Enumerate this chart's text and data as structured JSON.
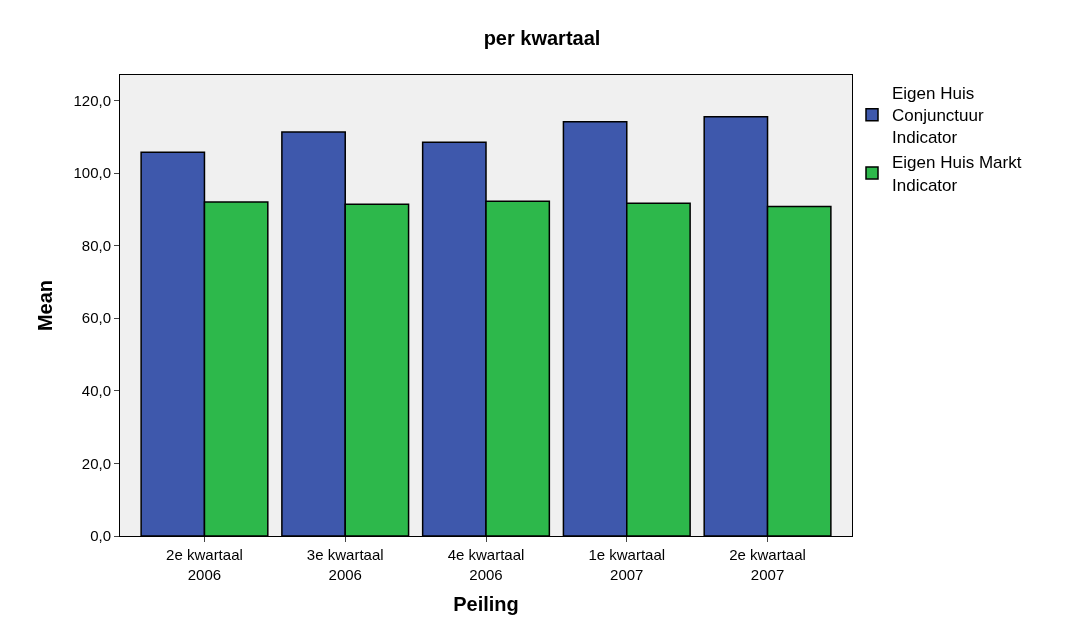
{
  "chart_data": {
    "type": "bar",
    "title": "per kwartaal",
    "xlabel": "Peiling",
    "ylabel": "Mean",
    "categories": [
      "2e kwartaal 2006",
      "3e kwartaal 2006",
      "4e kwartaal 2006",
      "1e kwartaal 2007",
      "2e kwartaal 2007"
    ],
    "series": [
      {
        "name": "Eigen Huis Conjunctuur Indicator",
        "color": "#3e58ac",
        "values": [
          105.7,
          111.3,
          108.5,
          114.1,
          115.5
        ]
      },
      {
        "name": "Eigen Huis Markt Indicator",
        "color": "#2db84b",
        "values": [
          92.0,
          91.4,
          92.2,
          91.7,
          90.8
        ]
      }
    ],
    "ylim": [
      0,
      127
    ],
    "yticks": [
      {
        "value": 0,
        "label": "0,0"
      },
      {
        "value": 20,
        "label": "20,0"
      },
      {
        "value": 40,
        "label": "40,0"
      },
      {
        "value": 60,
        "label": "60,0"
      },
      {
        "value": 80,
        "label": "80,0"
      },
      {
        "value": 100,
        "label": "100,0"
      },
      {
        "value": 120,
        "label": "120,0"
      }
    ],
    "grid": false,
    "legend": "top right"
  }
}
